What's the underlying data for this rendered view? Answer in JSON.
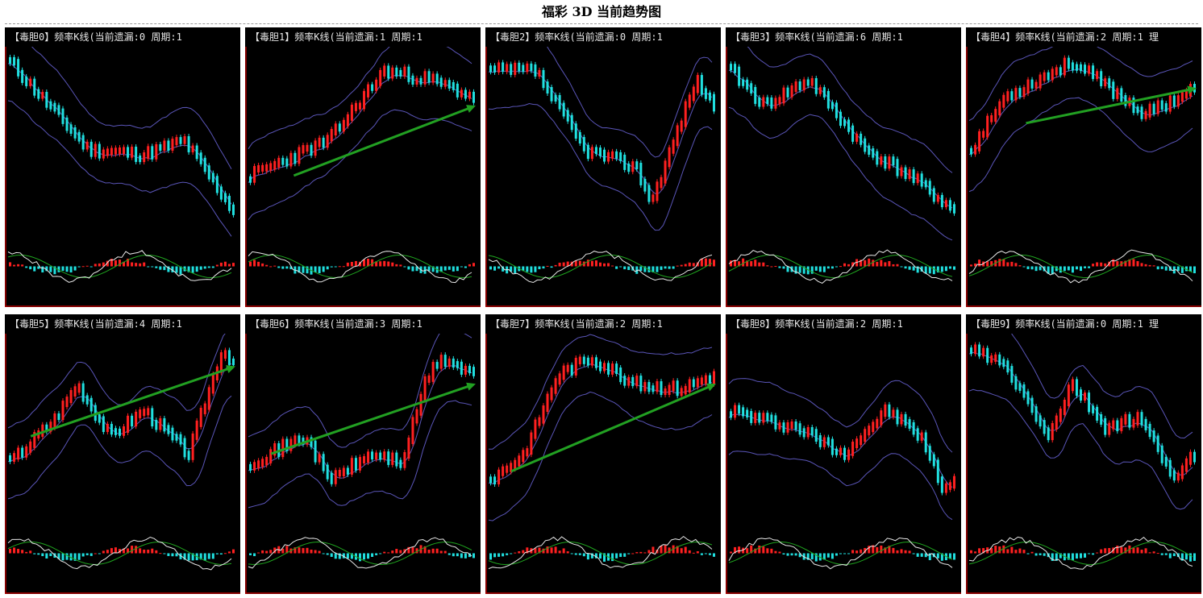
{
  "title": "福彩 3D 当前趋势图",
  "colors": {
    "background": "#000000",
    "up_candle": "#ff2020",
    "down_candle": "#20e0e0",
    "band": "#5a55b8",
    "trend_arrow": "#22a022",
    "frame": "#b00000",
    "osc_fast": "#e8e8e8",
    "osc_slow": "#1fa51f"
  },
  "chart_data": [
    {
      "type": "candlestick",
      "title": "【毒胆0】频率K线(当前遗漏:0 周期:1",
      "seed": 11,
      "trend": [
        [
          0,
          0.95
        ],
        [
          0.35,
          0.45
        ],
        [
          0.6,
          0.42
        ],
        [
          0.78,
          0.5
        ],
        [
          1,
          0.1
        ]
      ],
      "arrow": null
    },
    {
      "type": "candlestick",
      "title": "【毒胆1】频率K线(当前遗漏:1 周期:1",
      "seed": 23,
      "trend": [
        [
          0,
          0.3
        ],
        [
          0.35,
          0.5
        ],
        [
          0.6,
          0.9
        ],
        [
          0.8,
          0.85
        ],
        [
          1,
          0.75
        ]
      ],
      "arrow": [
        [
          0.2,
          0.3
        ],
        [
          1,
          0.7
        ]
      ]
    },
    {
      "type": "candlestick",
      "title": "【毒胆2】频率K线(当前遗漏:0 周期:1",
      "seed": 37,
      "trend": [
        [
          0,
          0.9
        ],
        [
          0.2,
          0.9
        ],
        [
          0.42,
          0.45
        ],
        [
          0.65,
          0.35
        ],
        [
          0.72,
          0.15
        ],
        [
          0.92,
          0.85
        ],
        [
          1,
          0.7
        ]
      ],
      "arrow": null
    },
    {
      "type": "candlestick",
      "title": "【毒胆3】频率K线(当前遗漏:6 周期:1",
      "seed": 41,
      "trend": [
        [
          0,
          0.9
        ],
        [
          0.15,
          0.7
        ],
        [
          0.35,
          0.85
        ],
        [
          0.6,
          0.45
        ],
        [
          0.8,
          0.3
        ],
        [
          1,
          0.1
        ]
      ],
      "arrow": null
    },
    {
      "type": "candlestick",
      "title": "【毒胆4】频率K线(当前遗漏:2 周期:1 理",
      "seed": 53,
      "trend": [
        [
          0,
          0.45
        ],
        [
          0.15,
          0.75
        ],
        [
          0.45,
          0.95
        ],
        [
          0.62,
          0.8
        ],
        [
          0.78,
          0.65
        ],
        [
          1,
          0.8
        ]
      ],
      "arrow": [
        [
          0.25,
          0.6
        ],
        [
          1,
          0.8
        ]
      ]
    },
    {
      "type": "candlestick",
      "title": "【毒胆5】频率K线(当前遗漏:4 周期:1",
      "seed": 67,
      "trend": [
        [
          0,
          0.3
        ],
        [
          0.2,
          0.55
        ],
        [
          0.3,
          0.75
        ],
        [
          0.45,
          0.45
        ],
        [
          0.6,
          0.6
        ],
        [
          0.8,
          0.35
        ],
        [
          0.95,
          0.95
        ],
        [
          1,
          0.88
        ]
      ],
      "arrow": [
        [
          0.1,
          0.45
        ],
        [
          1,
          0.85
        ]
      ]
    },
    {
      "type": "candlestick",
      "title": "【毒胆6】频率K线(当前遗漏:3 周期:1",
      "seed": 71,
      "trend": [
        [
          0,
          0.3
        ],
        [
          0.25,
          0.45
        ],
        [
          0.35,
          0.2
        ],
        [
          0.55,
          0.35
        ],
        [
          0.68,
          0.3
        ],
        [
          0.78,
          0.75
        ],
        [
          0.85,
          0.9
        ],
        [
          1,
          0.8
        ]
      ],
      "arrow": [
        [
          0.1,
          0.35
        ],
        [
          1,
          0.75
        ]
      ]
    },
    {
      "type": "candlestick",
      "title": "【毒胆7】频率K线(当前遗漏:2 周期:1",
      "seed": 83,
      "trend": [
        [
          0,
          0.2
        ],
        [
          0.15,
          0.35
        ],
        [
          0.3,
          0.8
        ],
        [
          0.45,
          0.9
        ],
        [
          0.65,
          0.75
        ],
        [
          0.85,
          0.72
        ],
        [
          1,
          0.8
        ]
      ],
      "arrow": [
        [
          0.1,
          0.25
        ],
        [
          1,
          0.75
        ]
      ]
    },
    {
      "type": "candlestick",
      "title": "【毒胆8】频率K线(当前遗漏:2 周期:1",
      "seed": 97,
      "trend": [
        [
          0,
          0.6
        ],
        [
          0.12,
          0.55
        ],
        [
          0.3,
          0.5
        ],
        [
          0.5,
          0.35
        ],
        [
          0.7,
          0.6
        ],
        [
          0.85,
          0.45
        ],
        [
          0.95,
          0.15
        ],
        [
          1,
          0.2
        ]
      ],
      "arrow": null
    },
    {
      "type": "candlestick",
      "title": "【毒胆9】频率K线(当前遗漏:0 周期:1 理",
      "seed": 103,
      "trend": [
        [
          0,
          0.95
        ],
        [
          0.15,
          0.85
        ],
        [
          0.35,
          0.45
        ],
        [
          0.45,
          0.75
        ],
        [
          0.6,
          0.5
        ],
        [
          0.75,
          0.55
        ],
        [
          0.92,
          0.2
        ],
        [
          1,
          0.35
        ]
      ],
      "arrow": null
    }
  ]
}
